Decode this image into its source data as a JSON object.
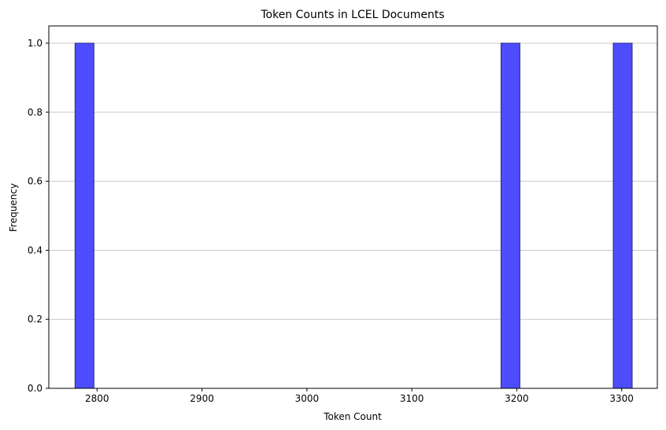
{
  "chart_data": {
    "type": "histogram",
    "title": "Token Counts in LCEL Documents",
    "xlabel": "Token Count",
    "ylabel": "Frequency",
    "xlim": [
      2754,
      3334
    ],
    "ylim": [
      0,
      1.05
    ],
    "x_ticks": [
      2800,
      2900,
      3000,
      3100,
      3200,
      3300
    ],
    "y_ticks": [
      0.0,
      0.2,
      0.4,
      0.6,
      0.8,
      1.0
    ],
    "y_tick_labels": [
      "0.0",
      "0.2",
      "0.4",
      "0.6",
      "0.8",
      "1.0"
    ],
    "grid": "y-axis",
    "bins": [
      {
        "x_start": 2779,
        "x_end": 2797,
        "count": 1
      },
      {
        "x_start": 3185,
        "x_end": 3203,
        "count": 1
      },
      {
        "x_start": 3292,
        "x_end": 3310,
        "count": 1
      }
    ],
    "bar_color": "#4d4dff",
    "bar_edge_color": "#2a2a80",
    "grid_color": "#c8c8c8"
  }
}
